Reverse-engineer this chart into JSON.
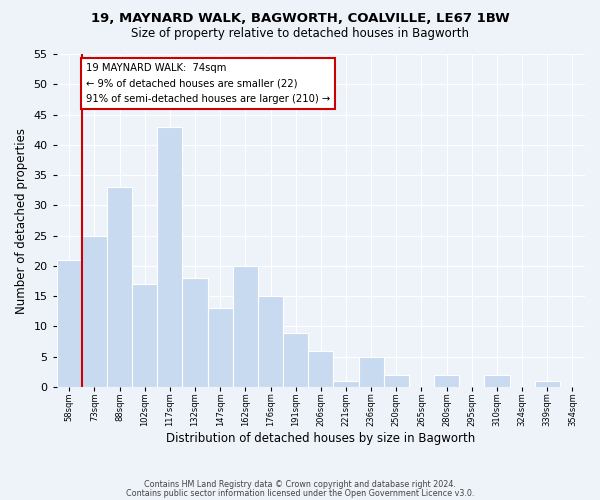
{
  "title": "19, MAYNARD WALK, BAGWORTH, COALVILLE, LE67 1BW",
  "subtitle": "Size of property relative to detached houses in Bagworth",
  "xlabel": "Distribution of detached houses by size in Bagworth",
  "ylabel": "Number of detached properties",
  "bar_color": "#c8daf0",
  "marker_color": "#cc0000",
  "bin_labels": [
    "58sqm",
    "73sqm",
    "88sqm",
    "102sqm",
    "117sqm",
    "132sqm",
    "147sqm",
    "162sqm",
    "176sqm",
    "191sqm",
    "206sqm",
    "221sqm",
    "236sqm",
    "250sqm",
    "265sqm",
    "280sqm",
    "295sqm",
    "310sqm",
    "324sqm",
    "339sqm",
    "354sqm"
  ],
  "bar_heights": [
    21,
    25,
    33,
    17,
    43,
    18,
    13,
    20,
    15,
    9,
    6,
    1,
    5,
    2,
    0,
    2,
    0,
    2,
    0,
    1,
    0
  ],
  "ylim": [
    0,
    55
  ],
  "yticks": [
    0,
    5,
    10,
    15,
    20,
    25,
    30,
    35,
    40,
    45,
    50,
    55
  ],
  "annotation_line1": "19 MAYNARD WALK:  74sqm",
  "annotation_line2": "← 9% of detached houses are smaller (22)",
  "annotation_line3": "91% of semi-detached houses are larger (210) →",
  "footer1": "Contains HM Land Registry data © Crown copyright and database right 2024.",
  "footer2": "Contains public sector information licensed under the Open Government Licence v3.0.",
  "background_color": "#eef3fa",
  "plot_background": "#eef3fa"
}
